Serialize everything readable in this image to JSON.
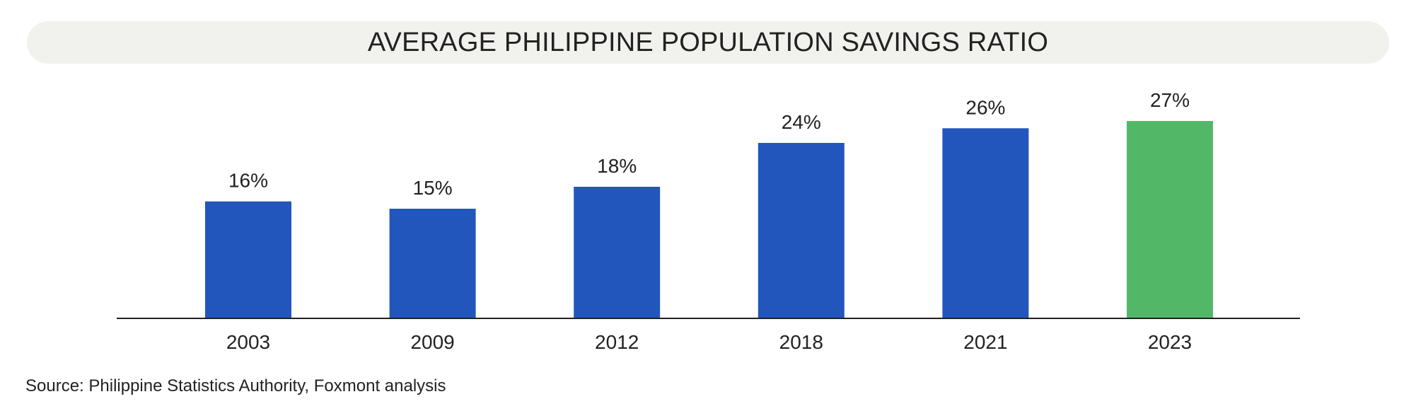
{
  "chart_data": {
    "type": "bar",
    "title": "AVERAGE PHILIPPINE POPULATION SAVINGS RATIO",
    "categories": [
      "2003",
      "2009",
      "2012",
      "2018",
      "2021",
      "2023"
    ],
    "values": [
      16,
      15,
      18,
      24,
      26,
      27
    ],
    "data_labels": [
      "16%",
      "15%",
      "18%",
      "24%",
      "26%",
      "27%"
    ],
    "xlabel": "",
    "ylabel": "",
    "ylim": [
      0,
      27
    ],
    "grid": false,
    "legend": "none",
    "colors": {
      "default": "#2356bd",
      "highlight": "#52b868",
      "highlight_category": "2023"
    }
  },
  "footer": {
    "source": "Source: Philippine Statistics Authority, Foxmont analysis"
  }
}
